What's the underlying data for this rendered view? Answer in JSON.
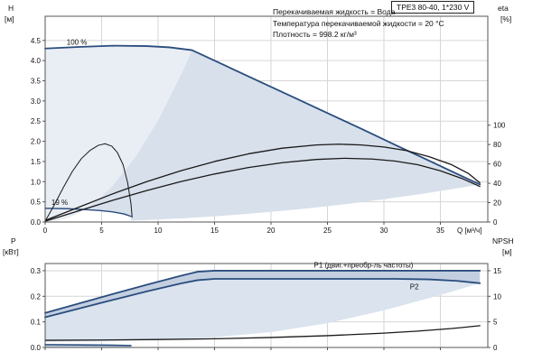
{
  "title_box": "TPE3 80-40, 1*230 V",
  "info_lines": [
    "Перекачиваемая жидкость = Вода",
    "Температура перекачиваемой жидкости = 20 °C",
    "Плотность = 998.2 кг/м³"
  ],
  "colors": {
    "accent_curve": "#2a4d7d",
    "black_curve": "#1a1a1a",
    "label_blue": "#2e66a8",
    "grid": "#d6d6d6",
    "frame": "#555555",
    "envelope": "#d8e0eb",
    "envelope_light": "#e9edf4",
    "band": "#c3cfe0"
  },
  "chart_data": [
    {
      "type": "line",
      "name": "hq-eta-chart",
      "x_axis": {
        "label": "Q [м³/ч]",
        "min": 0,
        "max": 39.2,
        "ticks": [
          [
            0,
            "0"
          ],
          [
            5,
            "5"
          ],
          [
            10,
            "10"
          ],
          [
            15,
            "15"
          ],
          [
            20,
            "20"
          ],
          [
            25,
            "25"
          ],
          [
            30,
            "30"
          ],
          [
            35,
            "35"
          ]
        ]
      },
      "y_axis": {
        "label": "H",
        "unit": "[м]",
        "min": 0,
        "max": 5.1,
        "ticks": [
          [
            0,
            "0.0"
          ],
          [
            0.5,
            "0.5"
          ],
          [
            1,
            "1.0"
          ],
          [
            1.5,
            "1.5"
          ],
          [
            2,
            "2.0"
          ],
          [
            2.5,
            "2.5"
          ],
          [
            3,
            "3.0"
          ],
          [
            3.5,
            "3.5"
          ],
          [
            4,
            "4.0"
          ],
          [
            4.5,
            "4.5"
          ]
        ]
      },
      "y2_axis": {
        "label": "eta",
        "unit": "[%]",
        "scale_to_y": 0.024,
        "ticks": [
          [
            0,
            "0"
          ],
          [
            20,
            "20"
          ],
          [
            40,
            "40"
          ],
          [
            60,
            "60"
          ],
          [
            80,
            "80"
          ],
          [
            100,
            "100"
          ]
        ]
      },
      "fills": [
        {
          "name": "envelope-left-light",
          "color": "#e9edf4",
          "points": [
            [
              0,
              4.3
            ],
            [
              3,
              4.34
            ],
            [
              6,
              4.37
            ],
            [
              9,
              4.36
            ],
            [
              11,
              4.33
            ],
            [
              13,
              4.26
            ],
            [
              12,
              3.63
            ],
            [
              10,
              2.52
            ],
            [
              8,
              1.61
            ],
            [
              6,
              0.91
            ],
            [
              5,
              0.63
            ],
            [
              4,
              0.4
            ],
            [
              3,
              0.23
            ],
            [
              2,
              0.1
            ],
            [
              1,
              0.025
            ],
            [
              0,
              0
            ]
          ]
        },
        {
          "name": "operating-envelope",
          "color": "#d8e0eb",
          "points": [
            [
              0,
              0.34
            ],
            [
              2,
              0.33
            ],
            [
              4,
              0.3
            ],
            [
              6,
              0.24
            ],
            [
              7.6,
              0.13
            ],
            [
              7.6,
              0.036
            ],
            [
              9,
              0.051
            ],
            [
              12,
              0.09
            ],
            [
              15,
              0.141
            ],
            [
              18,
              0.203
            ],
            [
              21,
              0.277
            ],
            [
              24,
              0.361
            ],
            [
              27,
              0.457
            ],
            [
              30,
              0.564
            ],
            [
              33,
              0.683
            ],
            [
              36,
              0.813
            ],
            [
              38.5,
              0.93
            ],
            [
              36,
              1.26
            ],
            [
              33,
              1.65
            ],
            [
              30,
              2.05
            ],
            [
              27,
              2.44
            ],
            [
              24,
              2.83
            ],
            [
              21,
              3.22
            ],
            [
              18,
              3.61
            ],
            [
              15,
              4.0
            ],
            [
              13,
              4.26
            ],
            [
              12,
              3.63
            ],
            [
              10,
              2.52
            ],
            [
              8,
              1.61
            ],
            [
              6,
              0.91
            ],
            [
              5,
              0.63
            ],
            [
              4,
              0.4
            ],
            [
              3.6,
              0.33
            ]
          ]
        }
      ],
      "series": [
        {
          "name": "max-speed-curve",
          "color": "#2a4d7d",
          "width": 1.8,
          "points": [
            [
              0,
              4.3
            ],
            [
              3,
              4.34
            ],
            [
              6,
              4.37
            ],
            [
              9,
              4.36
            ],
            [
              11,
              4.33
            ],
            [
              13,
              4.26
            ],
            [
              16,
              3.87
            ],
            [
              19,
              3.48
            ],
            [
              22,
              3.09
            ],
            [
              25,
              2.7
            ],
            [
              28,
              2.31
            ],
            [
              31,
              1.91
            ],
            [
              34,
              1.52
            ],
            [
              36.5,
              1.19
            ],
            [
              38.5,
              0.93
            ]
          ]
        },
        {
          "name": "min-speed-curve",
          "color": "#2a4d7d",
          "width": 1.4,
          "points": [
            [
              0,
              0.34
            ],
            [
              2,
              0.33
            ],
            [
              3.5,
              0.31
            ],
            [
              5,
              0.28
            ],
            [
              6,
              0.25
            ],
            [
              7,
              0.2
            ],
            [
              7.6,
              0.14
            ]
          ]
        },
        {
          "name": "eta-pump-curve",
          "color": "#1a1a1a",
          "width": 1.3,
          "points": [
            [
              0,
              0.04
            ],
            [
              3,
              0.37
            ],
            [
              6,
              0.7
            ],
            [
              9,
              1.0
            ],
            [
              12,
              1.27
            ],
            [
              15,
              1.5
            ],
            [
              18,
              1.69
            ],
            [
              21,
              1.83
            ],
            [
              24,
              1.91
            ],
            [
              26,
              1.93
            ],
            [
              28,
              1.91
            ],
            [
              30,
              1.86
            ],
            [
              32,
              1.77
            ],
            [
              34,
              1.62
            ],
            [
              36,
              1.42
            ],
            [
              37.5,
              1.2
            ],
            [
              38.5,
              0.97
            ]
          ]
        },
        {
          "name": "eta-total-curve",
          "color": "#1a1a1a",
          "width": 1.3,
          "points": [
            [
              0,
              0.02
            ],
            [
              3,
              0.28
            ],
            [
              6,
              0.54
            ],
            [
              9,
              0.78
            ],
            [
              12,
              1.0
            ],
            [
              15,
              1.19
            ],
            [
              18,
              1.35
            ],
            [
              21,
              1.47
            ],
            [
              24,
              1.55
            ],
            [
              26.5,
              1.58
            ],
            [
              29,
              1.56
            ],
            [
              31,
              1.51
            ],
            [
              33,
              1.42
            ],
            [
              35,
              1.27
            ],
            [
              37,
              1.07
            ],
            [
              38.5,
              0.88
            ]
          ]
        },
        {
          "name": "min-speed-eta-curve",
          "color": "#1a1a1a",
          "width": 1,
          "points": [
            [
              0,
              0.02
            ],
            [
              0.8,
              0.42
            ],
            [
              1.6,
              0.85
            ],
            [
              2.4,
              1.25
            ],
            [
              3.2,
              1.57
            ],
            [
              4,
              1.78
            ],
            [
              4.7,
              1.9
            ],
            [
              5.3,
              1.94
            ],
            [
              5.9,
              1.88
            ],
            [
              6.4,
              1.72
            ],
            [
              6.9,
              1.42
            ],
            [
              7.3,
              0.98
            ],
            [
              7.6,
              0.45
            ],
            [
              7.7,
              0.12
            ]
          ]
        }
      ],
      "annotations": [
        {
          "name": "max-speed-label",
          "text": "100 %",
          "x": 1.9,
          "y": 4.4,
          "color": "#1a1a1a"
        },
        {
          "name": "min-speed-label",
          "text": "19 %",
          "x": 0.55,
          "y": 0.42,
          "color": "#1a1a1a"
        }
      ]
    },
    {
      "type": "line",
      "name": "power-npsh-chart",
      "x_axis": {
        "label": "",
        "min": 0,
        "max": 39.2,
        "ticks": [
          [
            0,
            "0"
          ],
          [
            5,
            "5"
          ],
          [
            10,
            "10"
          ],
          [
            15,
            "15"
          ],
          [
            20,
            "20"
          ],
          [
            25,
            "25"
          ],
          [
            30,
            "30"
          ],
          [
            35,
            "35"
          ]
        ]
      },
      "y_axis": {
        "label": "P",
        "unit": "[кВт]",
        "min": 0,
        "max": 0.328,
        "ticks": [
          [
            0,
            "0.0"
          ],
          [
            0.1,
            "0.1"
          ],
          [
            0.2,
            "0.2"
          ],
          [
            0.3,
            "0.3"
          ]
        ]
      },
      "y2_axis": {
        "label": "NPSH",
        "unit": "[м]",
        "scale_to_y": 0.02,
        "ticks": [
          [
            0,
            "0"
          ],
          [
            5,
            "5"
          ],
          [
            10,
            "10"
          ],
          [
            15,
            "15"
          ]
        ]
      },
      "fills": [
        {
          "name": "p-envelope",
          "color": "#dae3ee",
          "points": [
            [
              0,
              0.118
            ],
            [
              3,
              0.152
            ],
            [
              6,
              0.186
            ],
            [
              9,
              0.219
            ],
            [
              12,
              0.25
            ],
            [
              13.5,
              0.263
            ],
            [
              15,
              0.268
            ],
            [
              25,
              0.268
            ],
            [
              31,
              0.268
            ],
            [
              34,
              0.266
            ],
            [
              36.5,
              0.26
            ],
            [
              38.5,
              0.251
            ],
            [
              35,
              0.205
            ],
            [
              30,
              0.145
            ],
            [
              25,
              0.095
            ],
            [
              20,
              0.06
            ],
            [
              15,
              0.04
            ],
            [
              10,
              0.029
            ],
            [
              5,
              0.024
            ],
            [
              0,
              0.022
            ]
          ]
        },
        {
          "name": "p1-p2-band",
          "color": "#c3cfe0",
          "points": [
            [
              0,
              0.135
            ],
            [
              3,
              0.172
            ],
            [
              6,
              0.209
            ],
            [
              9,
              0.245
            ],
            [
              12,
              0.28
            ],
            [
              13.5,
              0.296
            ],
            [
              15,
              0.3
            ],
            [
              38.5,
              0.3
            ],
            [
              38.5,
              0.251
            ],
            [
              36.5,
              0.26
            ],
            [
              34,
              0.266
            ],
            [
              31,
              0.268
            ],
            [
              25,
              0.268
            ],
            [
              15,
              0.268
            ],
            [
              13.5,
              0.263
            ],
            [
              12,
              0.25
            ],
            [
              9,
              0.219
            ],
            [
              6,
              0.186
            ],
            [
              3,
              0.152
            ],
            [
              0,
              0.118
            ]
          ]
        },
        {
          "name": "p-min-speed-region",
          "color": "#c3cfe0",
          "points": [
            [
              0,
              0.012
            ],
            [
              3,
              0.011
            ],
            [
              5.5,
              0.01
            ],
            [
              7.6,
              0.008
            ],
            [
              7.6,
              0.001
            ],
            [
              0,
              0.001
            ]
          ]
        }
      ],
      "series": [
        {
          "name": "p1-curve",
          "color": "#2a4d7d",
          "width": 1.8,
          "points": [
            [
              0,
              0.135
            ],
            [
              3,
              0.172
            ],
            [
              6,
              0.209
            ],
            [
              9,
              0.245
            ],
            [
              12,
              0.28
            ],
            [
              13.5,
              0.296
            ],
            [
              15,
              0.3
            ],
            [
              20,
              0.3
            ],
            [
              30,
              0.3
            ],
            [
              38.5,
              0.3
            ]
          ]
        },
        {
          "name": "p2-curve",
          "color": "#2a4d7d",
          "width": 1.8,
          "points": [
            [
              0,
              0.118
            ],
            [
              3,
              0.152
            ],
            [
              6,
              0.186
            ],
            [
              9,
              0.219
            ],
            [
              12,
              0.25
            ],
            [
              13.5,
              0.263
            ],
            [
              15,
              0.268
            ],
            [
              25,
              0.268
            ],
            [
              31,
              0.268
            ],
            [
              34,
              0.266
            ],
            [
              36.5,
              0.26
            ],
            [
              38.5,
              0.251
            ]
          ]
        },
        {
          "name": "npsh-curve",
          "color": "#1a1a1a",
          "width": 1.3,
          "points": [
            [
              0,
              0.028
            ],
            [
              5,
              0.029
            ],
            [
              10,
              0.031
            ],
            [
              15,
              0.034
            ],
            [
              20,
              0.039
            ],
            [
              25,
              0.046
            ],
            [
              30,
              0.056
            ],
            [
              33,
              0.064
            ],
            [
              36,
              0.074
            ],
            [
              38.5,
              0.085
            ]
          ]
        },
        {
          "name": "p-min-speed-curve",
          "color": "#2a4d7d",
          "width": 1.6,
          "points": [
            [
              0,
              0.011
            ],
            [
              3,
              0.01
            ],
            [
              5.5,
              0.009
            ],
            [
              7.6,
              0.0075
            ]
          ]
        }
      ],
      "annotations": [
        {
          "name": "p1-label",
          "text": "P1 (двиг.+преобр-ль частоты)",
          "x": 23.8,
          "y": 0.312,
          "color": "#2e66a8"
        },
        {
          "name": "p2-label",
          "text": "P2",
          "x": 32.3,
          "y": 0.228,
          "color": "#2e66a8"
        }
      ]
    }
  ]
}
